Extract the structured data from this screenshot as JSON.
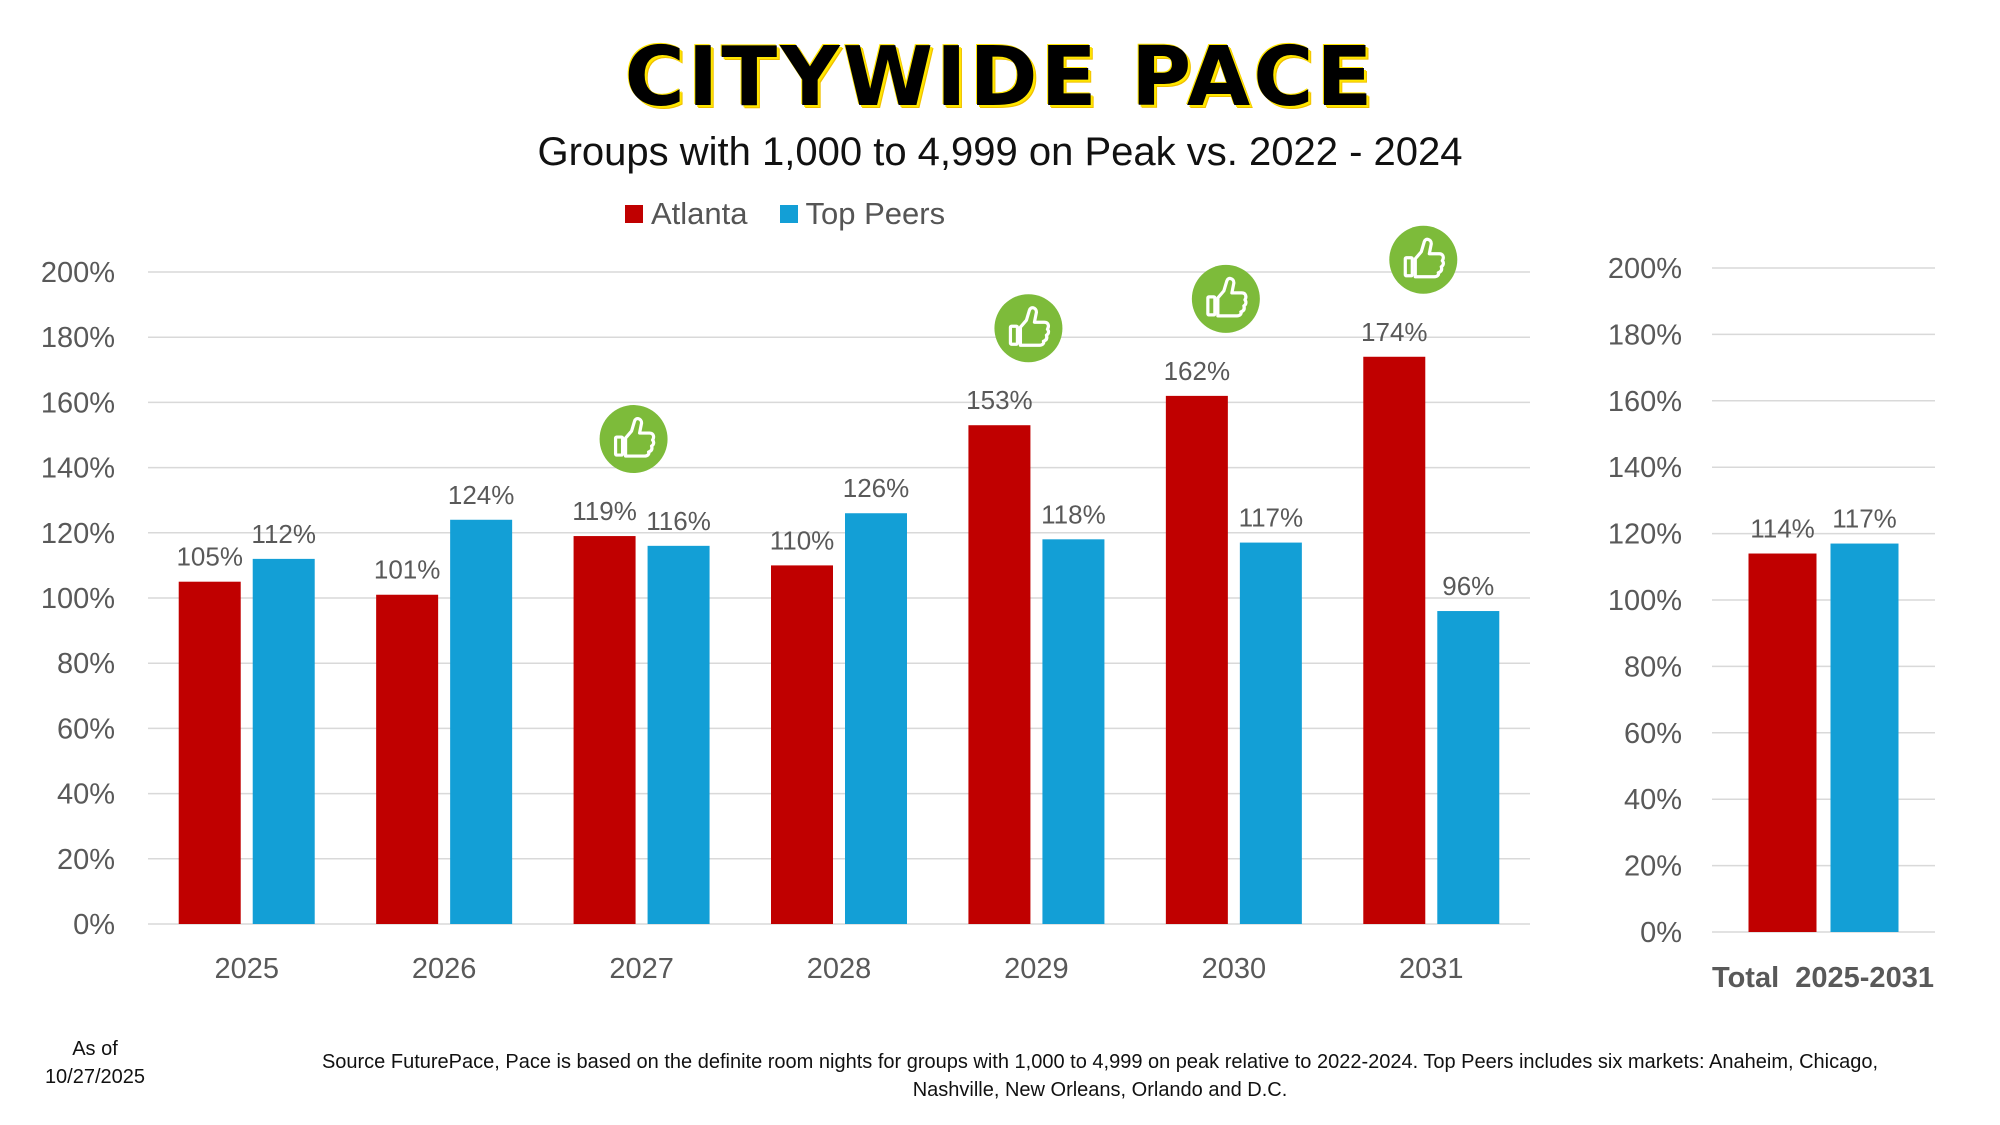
{
  "title": "CITYWIDE PACE",
  "subtitle": "Groups with 1,000 to 4,999 on Peak vs. 2022 - 2024",
  "legend": [
    {
      "label": "Atlanta",
      "color": "#c00000"
    },
    {
      "label": "Top Peers",
      "color": "#139fd6"
    }
  ],
  "colors": {
    "atlanta": "#c00000",
    "peers": "#139fd6",
    "thumb": "#7dbb3a",
    "grid": "#d9d9d9",
    "axis_text": "#595959"
  },
  "chart_data": [
    {
      "type": "bar",
      "categories": [
        "2025",
        "2026",
        "2027",
        "2028",
        "2029",
        "2030",
        "2031"
      ],
      "series": [
        {
          "name": "Atlanta",
          "values": [
            105,
            101,
            119,
            110,
            153,
            162,
            174
          ]
        },
        {
          "name": "Top Peers",
          "values": [
            112,
            124,
            116,
            126,
            118,
            117,
            96
          ]
        }
      ],
      "data_labels": {
        "Atlanta": [
          "105%",
          "101%",
          "119%",
          "110%",
          "153%",
          "162%",
          "174%"
        ],
        "Top Peers": [
          "112%",
          "124%",
          "116%",
          "126%",
          "118%",
          "117%",
          "96%"
        ]
      },
      "thumbs_up_categories": [
        "2027",
        "2029",
        "2030",
        "2031"
      ],
      "ylim": [
        0,
        200
      ],
      "y_ticks": [
        "0%",
        "20%",
        "40%",
        "60%",
        "80%",
        "100%",
        "120%",
        "140%",
        "160%",
        "180%",
        "200%"
      ],
      "grid": true,
      "legend_position": "top"
    },
    {
      "type": "bar",
      "categories": [
        "Total  2025-2031"
      ],
      "series": [
        {
          "name": "Atlanta",
          "values": [
            114
          ]
        },
        {
          "name": "Top Peers",
          "values": [
            117
          ]
        }
      ],
      "data_labels": {
        "Atlanta": [
          "114%"
        ],
        "Top Peers": [
          "117%"
        ]
      },
      "ylim": [
        0,
        200
      ],
      "y_ticks": [
        "0%",
        "20%",
        "40%",
        "60%",
        "80%",
        "100%",
        "120%",
        "140%",
        "160%",
        "180%",
        "200%"
      ],
      "grid": true
    }
  ],
  "footer": {
    "as_of_label": "As of",
    "as_of_date": "10/27/2025",
    "source_line1": "Source FuturePace, Pace is based on the definite room nights for groups with 1,000 to 4,999 on peak relative to 2022-2024. Top Peers includes six markets: Anaheim, Chicago,",
    "source_line2": "Nashville, New Orleans, Orlando and D.C."
  }
}
